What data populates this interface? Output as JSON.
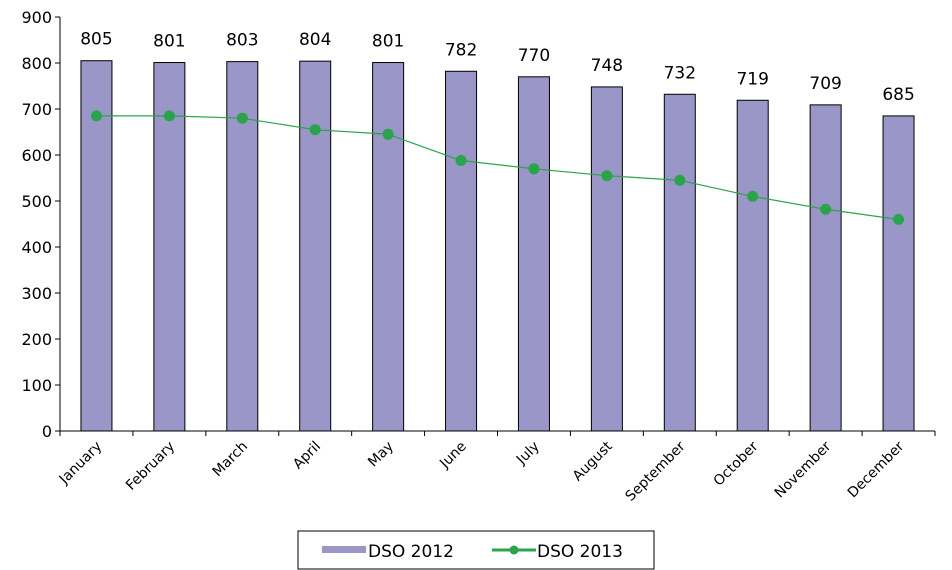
{
  "chart_data": {
    "type": "bar",
    "categories": [
      "January",
      "February",
      "March",
      "April",
      "May",
      "June",
      "July",
      "August",
      "September",
      "October",
      "November",
      "December"
    ],
    "series": [
      {
        "name": "DSO 2012",
        "type": "bar",
        "color": "#9a96c8",
        "values": [
          805,
          801,
          803,
          804,
          801,
          782,
          770,
          748,
          732,
          719,
          709,
          685
        ],
        "data_labels": [
          "805",
          "801",
          "803",
          "804",
          "801",
          "782",
          "770",
          "748",
          "732",
          "719",
          "709",
          "685"
        ]
      },
      {
        "name": "DSO 2013",
        "type": "line",
        "color": "#2aa34a",
        "values": [
          685,
          685,
          680,
          655,
          645,
          588,
          570,
          555,
          545,
          510,
          482,
          460
        ]
      }
    ],
    "ylim": [
      0,
      900
    ],
    "yticks": [
      0,
      100,
      200,
      300,
      400,
      500,
      600,
      700,
      800,
      900
    ],
    "grid": false,
    "legend_position": "bottom"
  }
}
